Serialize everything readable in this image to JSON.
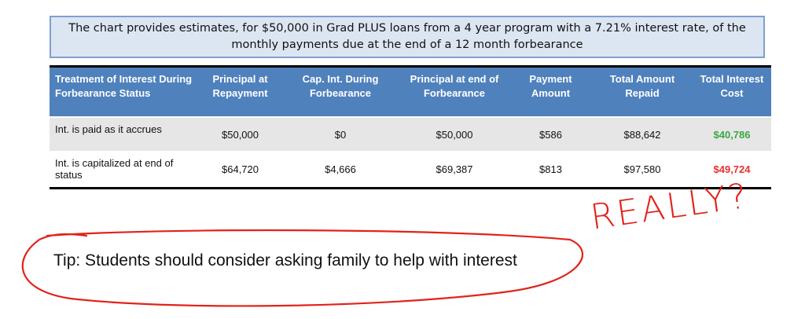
{
  "caption": "The chart provides estimates, for $50,000 in Grad PLUS loans from a 4 year program with a 7.21% interest rate, of the monthly payments due at the end of a 12 month forbearance",
  "table": {
    "headers": [
      "Treatment of Interest During Forbearance Status",
      "Principal at Repayment",
      "Cap. Int. During Forbearance",
      "Principal at end of Forbearance",
      "Payment Amount",
      "Total Amount Repaid",
      "Total Interest Cost"
    ],
    "rows": [
      [
        "Int. is paid as it accrues",
        "$50,000",
        "$0",
        "$50,000",
        "$586",
        "$88,642",
        "$40,786"
      ],
      [
        "Int. is capitalized at end of status",
        "$64,720",
        "$4,666",
        "$69,387",
        "$813",
        "$97,580",
        "$49,724"
      ]
    ]
  },
  "tip": "Tip:  Students should consider asking family to help with interest",
  "annotation": "REALLY?",
  "colors": {
    "header": "#4f81bd",
    "good": "#3aa843",
    "bad": "#e8322c",
    "ink": "#e2231a"
  }
}
